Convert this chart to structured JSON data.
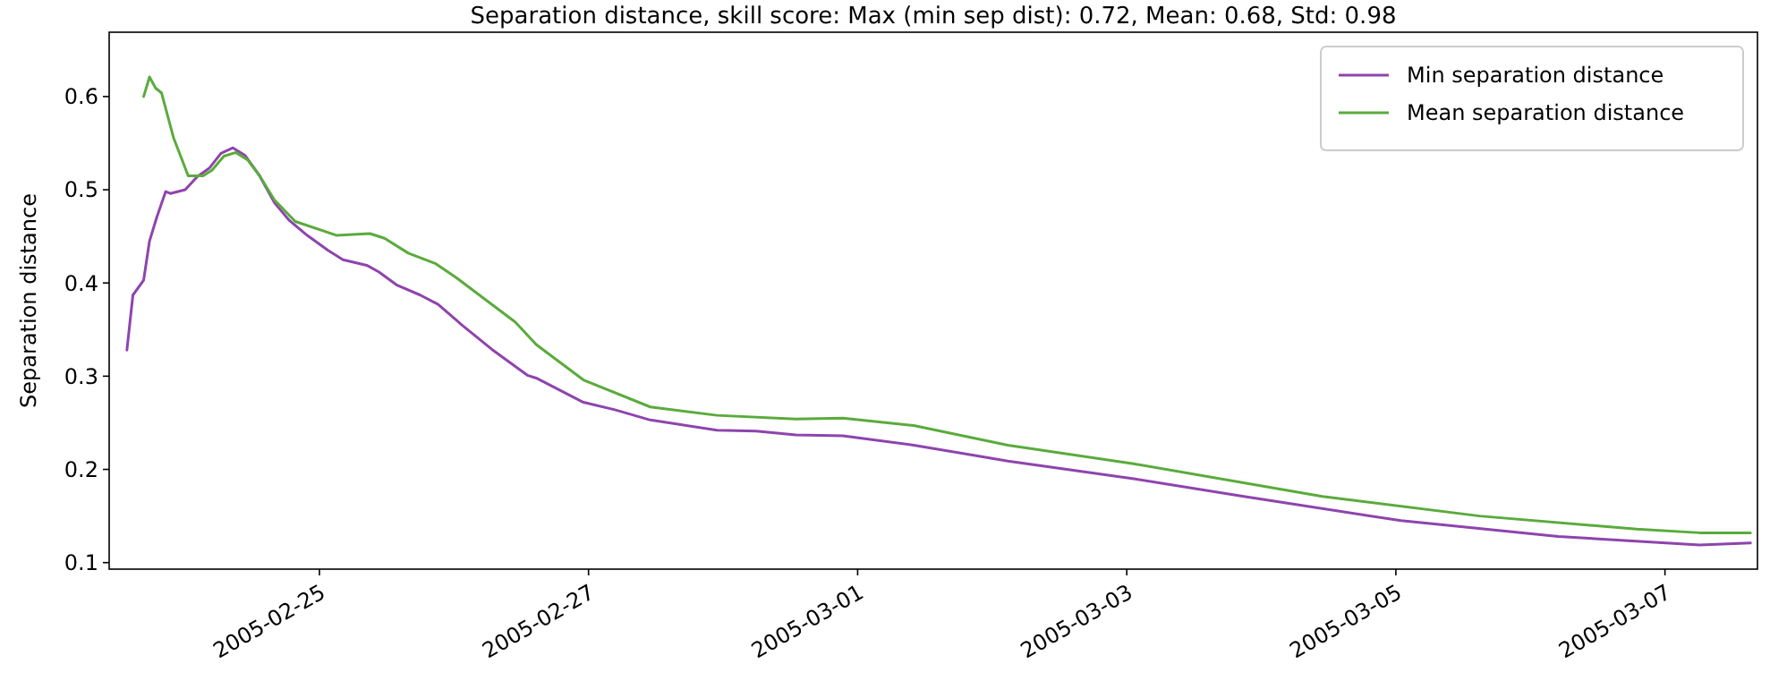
{
  "chart_data": {
    "type": "line",
    "title": "Separation distance, skill score: Max (min sep dist): 0.72, Mean: 0.68, Std: 0.98",
    "ylabel": "Separation distance",
    "xlim": [
      "2005-02-23T10:30",
      "2005-03-07T16:30"
    ],
    "ylim": [
      0.093,
      0.669
    ],
    "yticks": [
      0.1,
      0.2,
      0.3,
      0.4,
      0.5,
      0.6
    ],
    "xticks": [
      {
        "value": "2005-02-25",
        "label": "2005-02-25"
      },
      {
        "value": "2005-02-27",
        "label": "2005-02-27"
      },
      {
        "value": "2005-03-01",
        "label": "2005-03-01"
      },
      {
        "value": "2005-03-03",
        "label": "2005-03-03"
      },
      {
        "value": "2005-03-05",
        "label": "2005-03-05"
      },
      {
        "value": "2005-03-07",
        "label": "2005-03-07"
      }
    ],
    "grid": false,
    "legend": "top right",
    "line_style": "solid",
    "marker": "none",
    "series": [
      {
        "name": "Min separation distance",
        "color": "#8e44ad",
        "x": [
          "2005-02-23T13:40",
          "2005-02-23T14:44",
          "2005-02-23T16:39",
          "2005-02-23T17:42",
          "2005-02-23T18:58",
          "2005-02-23T20:34",
          "2005-02-23T21:25",
          "2005-02-24T00:04",
          "2005-02-24T02:12",
          "2005-02-24T04:20",
          "2005-02-24T06:26",
          "2005-02-24T08:34",
          "2005-02-24T10:42",
          "2005-02-24T13:20",
          "2005-02-24T15:59",
          "2005-02-24T18:39",
          "2005-02-24T21:50",
          "2005-02-25T01:32",
          "2005-02-25T04:12",
          "2005-02-25T08:26",
          "2005-02-25T10:34",
          "2005-02-25T13:45",
          "2005-02-25T17:59",
          "2005-02-25T21:10",
          "2005-02-26T01:24",
          "2005-02-26T06:43",
          "2005-02-26T13:05",
          "2005-02-26T14:40",
          "2005-02-26T23:05",
          "2005-02-27T04:41",
          "2005-02-27T11:01",
          "2005-02-27T22:55",
          "2005-02-28T05:55",
          "2005-02-28T12:57",
          "2005-02-28T21:22",
          "2005-03-01T10:00",
          "2005-03-02T02:48",
          "2005-03-03T01:14",
          "2005-03-03T20:53",
          "2005-03-05T00:55",
          "2005-03-06T04:58",
          "2005-03-07T06:12",
          "2005-03-07T15:15"
        ],
        "values": [
          0.328,
          0.387,
          0.403,
          0.445,
          0.47,
          0.498,
          0.496,
          0.5,
          0.514,
          0.523,
          0.539,
          0.545,
          0.537,
          0.515,
          0.486,
          0.467,
          0.451,
          0.435,
          0.425,
          0.419,
          0.412,
          0.398,
          0.387,
          0.377,
          0.355,
          0.329,
          0.301,
          0.298,
          0.272,
          0.264,
          0.253,
          0.242,
          0.241,
          0.237,
          0.236,
          0.226,
          0.209,
          0.19,
          0.171,
          0.145,
          0.128,
          0.119,
          0.121
        ]
      },
      {
        "name": "Mean separation distance",
        "color": "#5aab3c",
        "x": [
          "2005-02-23T16:39",
          "2005-02-23T17:42",
          "2005-02-23T18:47",
          "2005-02-23T19:50",
          "2005-02-23T21:58",
          "2005-02-24T00:36",
          "2005-02-24T03:15",
          "2005-02-24T04:50",
          "2005-02-24T06:58",
          "2005-02-24T09:06",
          "2005-02-24T11:12",
          "2005-02-24T13:20",
          "2005-02-24T15:59",
          "2005-02-24T19:42",
          "2005-02-25T03:07",
          "2005-02-25T08:59",
          "2005-02-25T11:37",
          "2005-02-25T15:51",
          "2005-02-25T20:38",
          "2005-02-26T00:21",
          "2005-02-26T10:57",
          "2005-02-26T14:40",
          "2005-02-26T23:05",
          "2005-02-27T11:01",
          "2005-02-27T22:55",
          "2005-02-28T12:57",
          "2005-02-28T21:22",
          "2005-03-01T10:00",
          "2005-03-02T02:48",
          "2005-03-03T01:14",
          "2005-03-04T10:53",
          "2005-03-05T14:56",
          "2005-03-06T18:58",
          "2005-03-07T06:12",
          "2005-03-07T15:15"
        ],
        "values": [
          0.6,
          0.621,
          0.609,
          0.604,
          0.556,
          0.515,
          0.515,
          0.521,
          0.536,
          0.54,
          0.532,
          0.515,
          0.489,
          0.466,
          0.451,
          0.453,
          0.448,
          0.432,
          0.421,
          0.406,
          0.358,
          0.334,
          0.296,
          0.267,
          0.258,
          0.254,
          0.255,
          0.247,
          0.226,
          0.206,
          0.171,
          0.15,
          0.136,
          0.132,
          0.132
        ]
      }
    ]
  }
}
